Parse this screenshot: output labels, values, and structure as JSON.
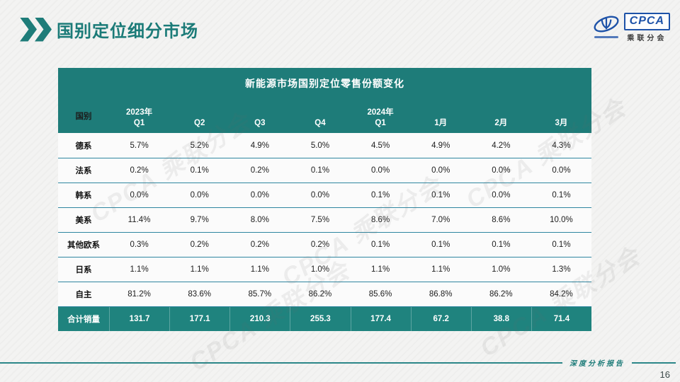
{
  "slide": {
    "title": "国别定位细分市场",
    "footer_text": "深度分析报告",
    "page_number": "16"
  },
  "logo": {
    "acronym": "CPCA",
    "name": "乘联分会"
  },
  "watermark_text": "CPCA",
  "colors": {
    "header_teal": "#1E7C79",
    "total_row_teal": "#1F837E",
    "row_divider_blue": "#2F86A0",
    "title_teal": "#1B7B78",
    "logo_blue": "#1D52A8",
    "background": "#F3F3F2"
  },
  "table": {
    "title": "新能源市场国别定位零售份额变化",
    "first_column_header": "国别",
    "columns": [
      {
        "year": "2023年",
        "label": "Q1"
      },
      {
        "year": "",
        "label": "Q2"
      },
      {
        "year": "",
        "label": "Q3"
      },
      {
        "year": "",
        "label": "Q4"
      },
      {
        "year": "2024年",
        "label": "Q1"
      },
      {
        "year": "",
        "label": "1月"
      },
      {
        "year": "",
        "label": "2月"
      },
      {
        "year": "",
        "label": "3月"
      }
    ],
    "rows": [
      {
        "label": "德系",
        "values": [
          "5.7%",
          "5.2%",
          "4.9%",
          "5.0%",
          "4.5%",
          "4.9%",
          "4.2%",
          "4.3%"
        ]
      },
      {
        "label": "法系",
        "values": [
          "0.2%",
          "0.1%",
          "0.2%",
          "0.1%",
          "0.0%",
          "0.0%",
          "0.0%",
          "0.0%"
        ]
      },
      {
        "label": "韩系",
        "values": [
          "0.0%",
          "0.0%",
          "0.0%",
          "0.0%",
          "0.1%",
          "0.1%",
          "0.0%",
          "0.1%"
        ]
      },
      {
        "label": "美系",
        "values": [
          "11.4%",
          "9.7%",
          "8.0%",
          "7.5%",
          "8.6%",
          "7.0%",
          "8.6%",
          "10.0%"
        ]
      },
      {
        "label": "其他欧系",
        "values": [
          "0.3%",
          "0.2%",
          "0.2%",
          "0.2%",
          "0.1%",
          "0.1%",
          "0.1%",
          "0.1%"
        ]
      },
      {
        "label": "日系",
        "values": [
          "1.1%",
          "1.1%",
          "1.1%",
          "1.0%",
          "1.1%",
          "1.1%",
          "1.0%",
          "1.3%"
        ]
      },
      {
        "label": "自主",
        "values": [
          "81.2%",
          "83.6%",
          "85.7%",
          "86.2%",
          "85.6%",
          "86.8%",
          "86.2%",
          "84.2%"
        ]
      }
    ],
    "total_row": {
      "label": "合计销量",
      "values": [
        "131.7",
        "177.1",
        "210.3",
        "255.3",
        "177.4",
        "67.2",
        "38.8",
        "71.4"
      ]
    }
  },
  "chart_data": {
    "type": "table",
    "title": "新能源市场国别定位零售份额变化",
    "categories": [
      "2023年Q1",
      "Q2",
      "Q3",
      "Q4",
      "2024年Q1",
      "1月",
      "2月",
      "3月"
    ],
    "series": [
      {
        "name": "德系",
        "values": [
          5.7,
          5.2,
          4.9,
          5.0,
          4.5,
          4.9,
          4.2,
          4.3
        ]
      },
      {
        "name": "法系",
        "values": [
          0.2,
          0.1,
          0.2,
          0.1,
          0.0,
          0.0,
          0.0,
          0.0
        ]
      },
      {
        "name": "韩系",
        "values": [
          0.0,
          0.0,
          0.0,
          0.0,
          0.1,
          0.1,
          0.0,
          0.1
        ]
      },
      {
        "name": "美系",
        "values": [
          11.4,
          9.7,
          8.0,
          7.5,
          8.6,
          7.0,
          8.6,
          10.0
        ]
      },
      {
        "name": "其他欧系",
        "values": [
          0.3,
          0.2,
          0.2,
          0.2,
          0.1,
          0.1,
          0.1,
          0.1
        ]
      },
      {
        "name": "日系",
        "values": [
          1.1,
          1.1,
          1.1,
          1.0,
          1.1,
          1.1,
          1.0,
          1.3
        ]
      },
      {
        "name": "自主",
        "values": [
          81.2,
          83.6,
          85.7,
          86.2,
          85.6,
          86.8,
          86.2,
          84.2
        ]
      },
      {
        "name": "合计销量",
        "values": [
          131.7,
          177.1,
          210.3,
          255.3,
          177.4,
          67.2,
          38.8,
          71.4
        ]
      }
    ]
  }
}
